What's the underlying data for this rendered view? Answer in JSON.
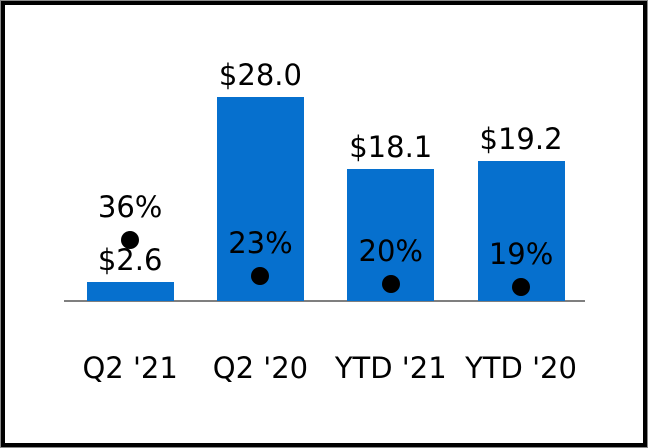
{
  "chart_data": {
    "type": "bar",
    "categories": [
      "Q2 '21",
      "Q2 '20",
      "YTD '21",
      "YTD '20"
    ],
    "series": [
      {
        "name": "dollar-bars",
        "type": "bar",
        "values": [
          2.6,
          28.0,
          18.1,
          19.2
        ],
        "labels": [
          "$2.6",
          "$28.0",
          "$18.1",
          "$19.2"
        ]
      },
      {
        "name": "percent-markers",
        "type": "scatter",
        "values": [
          36,
          23,
          20,
          19
        ],
        "labels": [
          "36%",
          "23%",
          "20%",
          "19%"
        ]
      }
    ],
    "title": "",
    "xlabel": "",
    "ylabel": "",
    "bar_axis_max": 28.0,
    "grid": false,
    "legend": false,
    "bar_color": "#0670ce",
    "marker_color": "#000000",
    "axis_color": "#7f7f7f",
    "text_color": "#000000",
    "frame_color": "#000000"
  }
}
